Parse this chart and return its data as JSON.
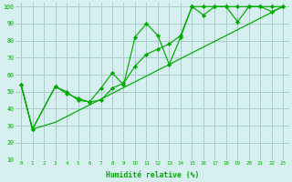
{
  "xlabel": "Humidité relative (%)",
  "bg_color": "#d6f0f0",
  "grid_color": "#aacccc",
  "line_color": "#00aa00",
  "xlim": [
    -0.5,
    23.5
  ],
  "ylim": [
    10,
    102
  ],
  "xticks": [
    0,
    1,
    2,
    3,
    4,
    5,
    6,
    7,
    8,
    9,
    10,
    11,
    12,
    13,
    14,
    15,
    16,
    17,
    18,
    19,
    20,
    21,
    22,
    23
  ],
  "yticks": [
    10,
    20,
    30,
    40,
    50,
    60,
    70,
    80,
    90,
    100
  ],
  "series": [
    {
      "x": [
        0,
        1,
        3,
        4,
        5,
        6,
        7,
        8,
        9,
        10,
        11,
        12,
        13,
        14,
        15,
        16,
        17,
        18,
        19,
        20,
        21,
        22,
        23
      ],
      "y": [
        54,
        28,
        53,
        50,
        45,
        44,
        45,
        52,
        55,
        65,
        72,
        75,
        78,
        83,
        100,
        100,
        100,
        100,
        100,
        100,
        100,
        100,
        100
      ]
    },
    {
      "x": [
        0,
        1,
        3,
        4,
        5,
        6,
        7,
        8,
        9,
        10,
        11,
        12,
        13,
        14,
        15,
        16,
        17,
        18,
        19,
        20,
        21,
        22,
        23
      ],
      "y": [
        54,
        28,
        53,
        49,
        46,
        44,
        52,
        61,
        54,
        82,
        90,
        83,
        66,
        82,
        100,
        95,
        100,
        100,
        91,
        100,
        100,
        97,
        100
      ]
    },
    {
      "x": [
        0,
        1,
        3,
        23
      ],
      "y": [
        54,
        28,
        32,
        100
      ]
    }
  ]
}
